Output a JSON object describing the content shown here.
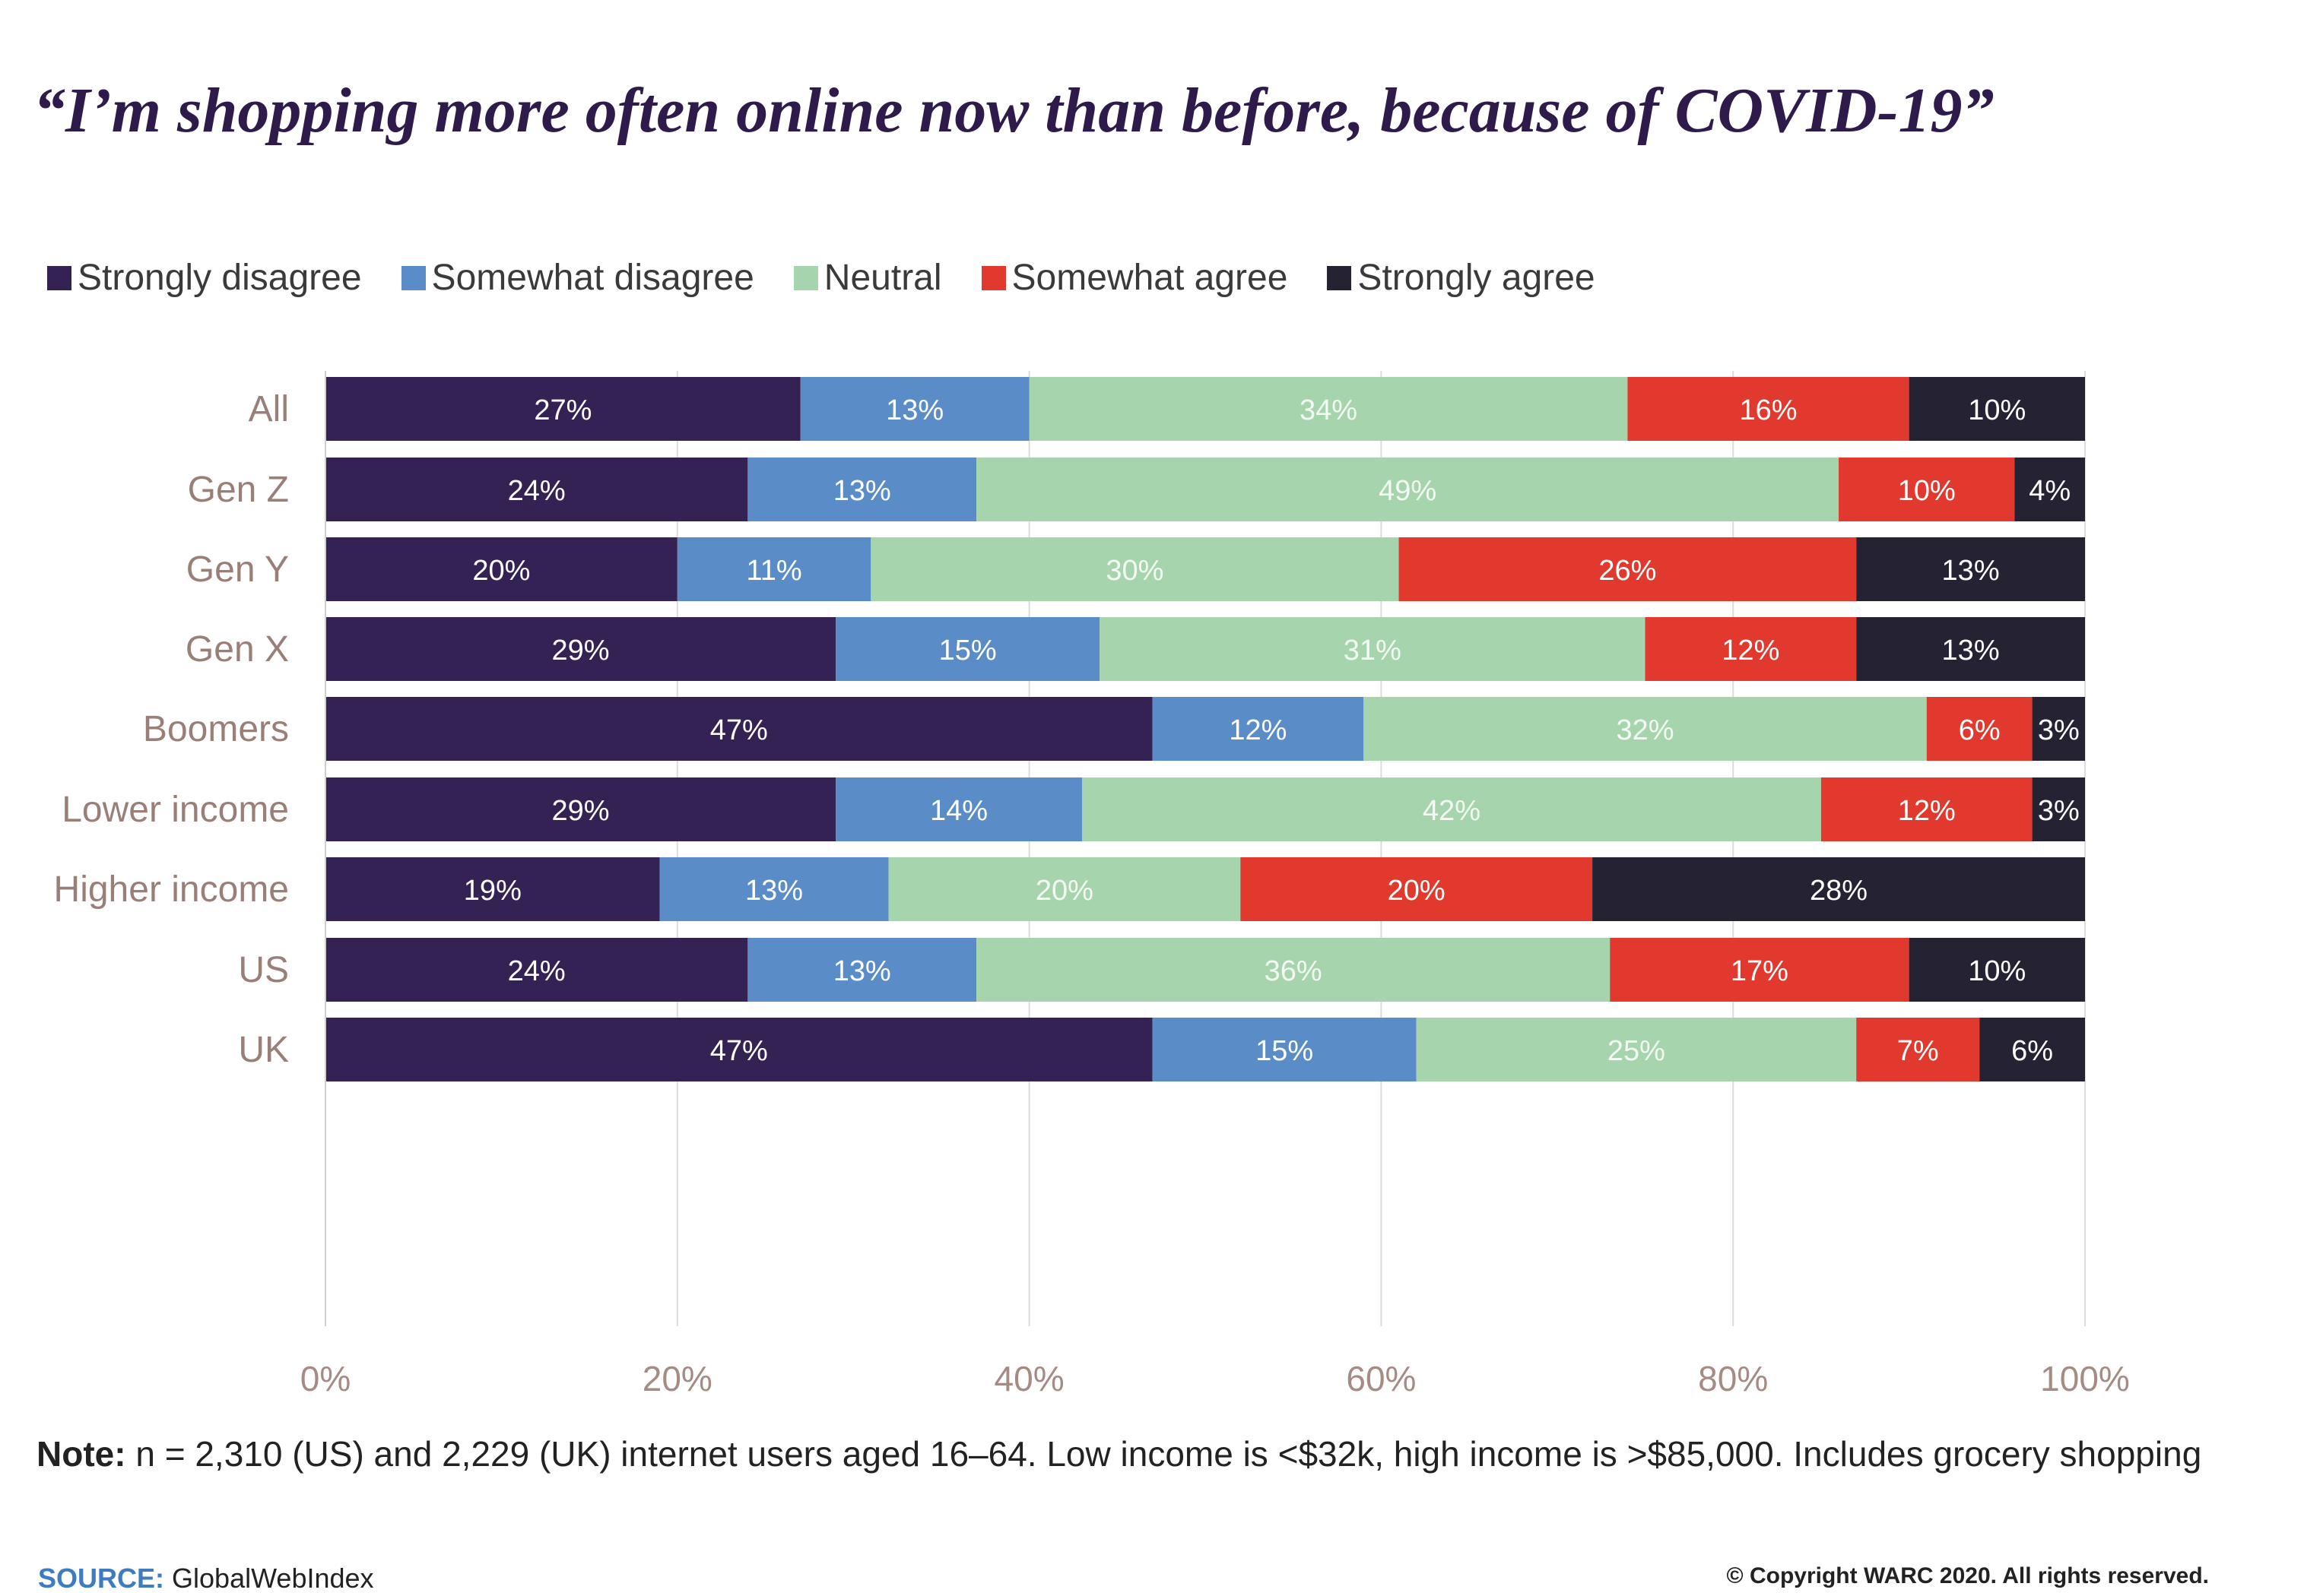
{
  "chart_data": {
    "type": "bar",
    "orientation": "horizontal",
    "stacked": true,
    "title": "“I’m shopping more often online now than before, because of COVID-19”",
    "categories": [
      "All",
      "Gen Z",
      "Gen Y",
      "Gen X",
      "Boomers",
      "Lower income",
      "Higher income",
      "US",
      "UK"
    ],
    "groups": [
      [
        "All"
      ],
      [
        "Gen Z",
        "Gen Y",
        "Gen X",
        "Boomers"
      ],
      [
        "Lower income",
        "Higher income"
      ],
      [
        "US",
        "UK"
      ]
    ],
    "series": [
      {
        "name": "Strongly disagree",
        "color": "#352254",
        "values": [
          27,
          24,
          20,
          29,
          47,
          29,
          19,
          24,
          47
        ]
      },
      {
        "name": "Somewhat disagree",
        "color": "#5a8cc8",
        "values": [
          13,
          13,
          11,
          15,
          12,
          14,
          13,
          13,
          15
        ]
      },
      {
        "name": "Neutral",
        "color": "#a6d4ad",
        "values": [
          34,
          49,
          30,
          31,
          32,
          42,
          20,
          36,
          25
        ]
      },
      {
        "name": "Somewhat agree",
        "color": "#e2392f",
        "values": [
          16,
          10,
          26,
          12,
          6,
          12,
          20,
          17,
          7
        ]
      },
      {
        "name": "Strongly agree",
        "color": "#242233",
        "values": [
          10,
          4,
          13,
          13,
          3,
          3,
          28,
          10,
          6
        ]
      }
    ],
    "value_suffix": "%",
    "xlim": [
      0,
      100
    ],
    "x_ticks": [
      "0%",
      "20%",
      "40%",
      "60%",
      "80%",
      "100%"
    ],
    "grid": true,
    "legend_position": "top-left",
    "xlabel": "",
    "ylabel": ""
  },
  "note": {
    "label": "Note:",
    "text": "n = 2,310 (US) and 2,229 (UK) internet users aged 16–64. Low income is <$32k, high income is >$85,000. Includes grocery shopping"
  },
  "source": {
    "label": "SOURCE:",
    "text": "GlobalWebIndex"
  },
  "copyright": "© Copyright WARC 2020. All rights reserved."
}
